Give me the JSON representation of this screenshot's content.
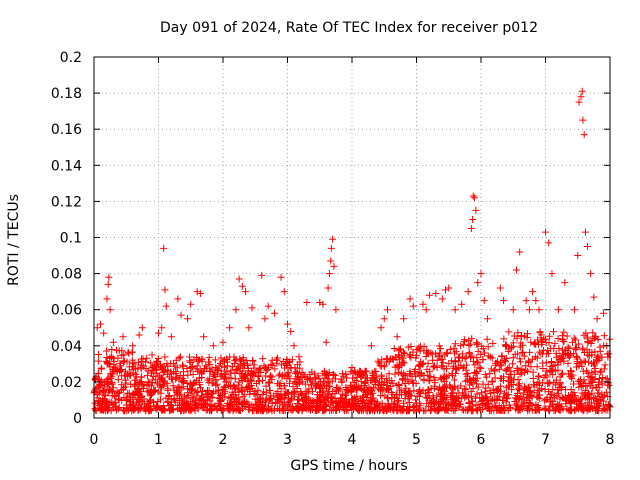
{
  "chart_data": {
    "type": "scatter",
    "title": "Day 091 of 2024, Rate Of TEC Index for receiver p012",
    "xlabel": "GPS time / hours",
    "ylabel": "ROTI / TECUs",
    "xlim": [
      0,
      8
    ],
    "ylim": [
      0,
      0.2
    ],
    "x_ticks": [
      0,
      1,
      2,
      3,
      4,
      5,
      6,
      7,
      8
    ],
    "y_ticks": [
      0,
      0.02,
      0.04,
      0.06,
      0.08,
      0.1,
      0.12,
      0.14,
      0.16,
      0.18,
      0.2
    ],
    "x_tick_labels": [
      "0",
      "1",
      "2",
      "3",
      "4",
      "5",
      "6",
      "7",
      "8"
    ],
    "y_tick_labels": [
      "0",
      "0.02",
      "0.04",
      "0.06",
      "0.08",
      "0.1",
      "0.12",
      "0.14",
      "0.16",
      "0.18",
      "0.2"
    ],
    "grid": true,
    "marker": "plus",
    "color": "#ff0000",
    "series": [
      {
        "name": "ROTI",
        "points": [
          [
            0.05,
            0.05
          ],
          [
            0.1,
            0.052
          ],
          [
            0.15,
            0.047
          ],
          [
            0.2,
            0.066
          ],
          [
            0.22,
            0.074
          ],
          [
            0.23,
            0.078
          ],
          [
            0.25,
            0.06
          ],
          [
            0.3,
            0.042
          ],
          [
            0.45,
            0.045
          ],
          [
            0.6,
            0.04
          ],
          [
            0.7,
            0.046
          ],
          [
            0.75,
            0.05
          ],
          [
            0.9,
            0.035
          ],
          [
            1.0,
            0.047
          ],
          [
            1.05,
            0.05
          ],
          [
            1.08,
            0.094
          ],
          [
            1.1,
            0.071
          ],
          [
            1.12,
            0.062
          ],
          [
            1.2,
            0.045
          ],
          [
            1.3,
            0.066
          ],
          [
            1.35,
            0.057
          ],
          [
            1.45,
            0.055
          ],
          [
            1.5,
            0.063
          ],
          [
            1.6,
            0.07
          ],
          [
            1.65,
            0.069
          ],
          [
            1.7,
            0.045
          ],
          [
            1.85,
            0.04
          ],
          [
            2.0,
            0.042
          ],
          [
            2.1,
            0.05
          ],
          [
            2.2,
            0.06
          ],
          [
            2.25,
            0.077
          ],
          [
            2.3,
            0.073
          ],
          [
            2.35,
            0.07
          ],
          [
            2.4,
            0.05
          ],
          [
            2.45,
            0.061
          ],
          [
            2.6,
            0.079
          ],
          [
            2.65,
            0.055
          ],
          [
            2.7,
            0.062
          ],
          [
            2.8,
            0.058
          ],
          [
            2.9,
            0.078
          ],
          [
            2.95,
            0.07
          ],
          [
            3.0,
            0.052
          ],
          [
            3.05,
            0.048
          ],
          [
            3.1,
            0.04
          ],
          [
            3.3,
            0.064
          ],
          [
            3.5,
            0.064
          ],
          [
            3.55,
            0.063
          ],
          [
            3.6,
            0.042
          ],
          [
            3.63,
            0.072
          ],
          [
            3.65,
            0.08
          ],
          [
            3.67,
            0.087
          ],
          [
            3.68,
            0.094
          ],
          [
            3.7,
            0.099
          ],
          [
            3.72,
            0.084
          ],
          [
            3.75,
            0.06
          ],
          [
            4.0,
            0.028
          ],
          [
            4.3,
            0.04
          ],
          [
            4.45,
            0.05
          ],
          [
            4.5,
            0.055
          ],
          [
            4.55,
            0.06
          ],
          [
            4.7,
            0.045
          ],
          [
            4.8,
            0.055
          ],
          [
            4.9,
            0.066
          ],
          [
            4.95,
            0.062
          ],
          [
            5.1,
            0.063
          ],
          [
            5.15,
            0.06
          ],
          [
            5.2,
            0.068
          ],
          [
            5.3,
            0.069
          ],
          [
            5.4,
            0.066
          ],
          [
            5.45,
            0.071
          ],
          [
            5.5,
            0.072
          ],
          [
            5.6,
            0.06
          ],
          [
            5.7,
            0.063
          ],
          [
            5.8,
            0.07
          ],
          [
            5.85,
            0.105
          ],
          [
            5.87,
            0.11
          ],
          [
            5.88,
            0.123
          ],
          [
            5.9,
            0.122
          ],
          [
            5.92,
            0.115
          ],
          [
            5.95,
            0.075
          ],
          [
            6.0,
            0.08
          ],
          [
            6.05,
            0.065
          ],
          [
            6.1,
            0.055
          ],
          [
            6.3,
            0.072
          ],
          [
            6.35,
            0.065
          ],
          [
            6.5,
            0.06
          ],
          [
            6.55,
            0.082
          ],
          [
            6.6,
            0.092
          ],
          [
            6.7,
            0.065
          ],
          [
            6.75,
            0.06
          ],
          [
            6.8,
            0.07
          ],
          [
            6.85,
            0.065
          ],
          [
            6.9,
            0.06
          ],
          [
            7.0,
            0.103
          ],
          [
            7.05,
            0.097
          ],
          [
            7.1,
            0.08
          ],
          [
            7.2,
            0.06
          ],
          [
            7.3,
            0.075
          ],
          [
            7.45,
            0.06
          ],
          [
            7.5,
            0.09
          ],
          [
            7.52,
            0.175
          ],
          [
            7.55,
            0.178
          ],
          [
            7.57,
            0.181
          ],
          [
            7.58,
            0.165
          ],
          [
            7.6,
            0.157
          ],
          [
            7.62,
            0.103
          ],
          [
            7.65,
            0.095
          ],
          [
            7.7,
            0.08
          ],
          [
            7.75,
            0.067
          ],
          [
            7.8,
            0.055
          ],
          [
            7.9,
            0.058
          ],
          [
            7.95,
            0.04
          ]
        ]
      }
    ]
  }
}
